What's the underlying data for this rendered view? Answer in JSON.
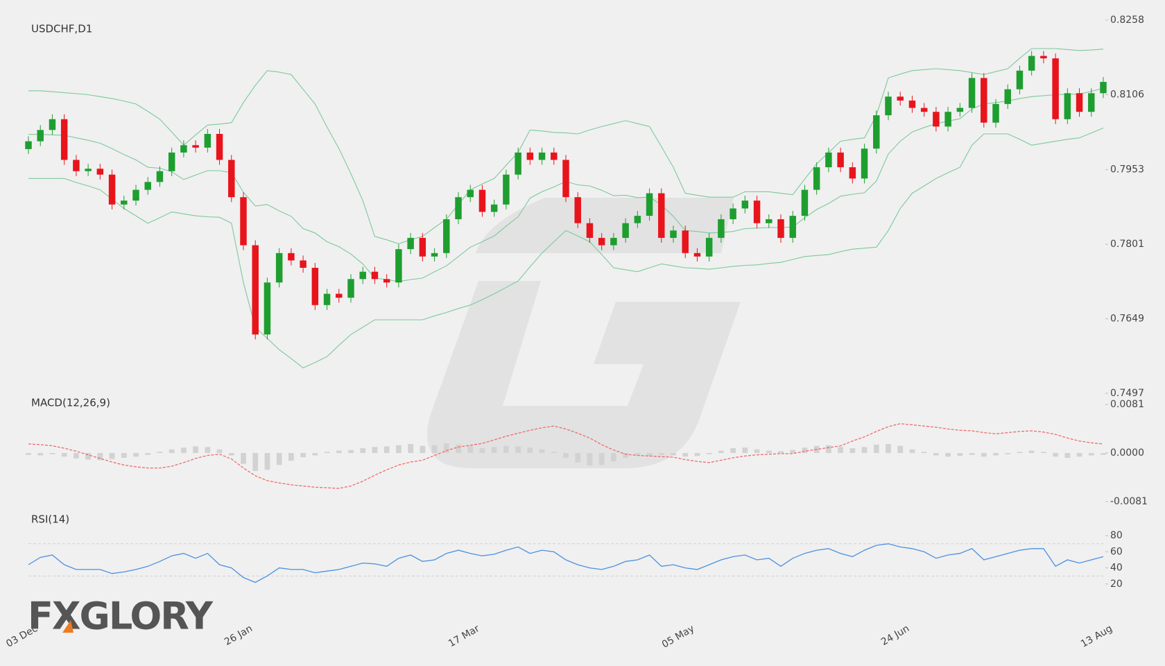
{
  "chart_data": [
    {
      "type": "candlestick",
      "title": "USDCHF,D1",
      "categories": [
        "03 Dec",
        null,
        null,
        null,
        null,
        null,
        null,
        null,
        null,
        null,
        null,
        null,
        null,
        null,
        null,
        null,
        null,
        null,
        "26 Jan",
        null,
        null,
        null,
        null,
        null,
        null,
        null,
        null,
        null,
        null,
        null,
        null,
        null,
        null,
        null,
        null,
        null,
        null,
        "17 Mar",
        null,
        null,
        null,
        null,
        null,
        null,
        null,
        null,
        null,
        null,
        null,
        null,
        null,
        null,
        null,
        null,
        null,
        "05 May",
        null,
        null,
        null,
        null,
        null,
        null,
        null,
        null,
        null,
        null,
        null,
        null,
        null,
        null,
        null,
        null,
        null,
        "24 Jun",
        null,
        null,
        null,
        null,
        null,
        null,
        null,
        null,
        null,
        null,
        null,
        null,
        null,
        null,
        null,
        null,
        "13 Aug"
      ],
      "open": [
        0.7995,
        0.8011,
        0.8034,
        0.8056,
        0.7973,
        0.795,
        0.7955,
        0.7943,
        0.7882,
        0.789,
        0.7912,
        0.7928,
        0.795,
        0.7988,
        0.8003,
        0.7998,
        0.8026,
        0.7973,
        0.7897,
        0.7799,
        0.7617,
        0.7723,
        0.7783,
        0.7768,
        0.7753,
        0.7677,
        0.77,
        0.7692,
        0.773,
        0.7745,
        0.773,
        0.7723,
        0.7791,
        0.7814,
        0.7776,
        0.7783,
        0.7852,
        0.7897,
        0.7912,
        0.7867,
        0.7882,
        0.7943,
        0.7988,
        0.7973,
        0.7988,
        0.7973,
        0.7897,
        0.7844,
        0.7814,
        0.7799,
        0.7814,
        0.7844,
        0.7859,
        0.7905,
        0.7814,
        0.7829,
        0.7783,
        0.7776,
        0.7814,
        0.7852,
        0.7874,
        0.789,
        0.7844,
        0.7852,
        0.7814,
        0.7859,
        0.7912,
        0.7958,
        0.7988,
        0.7958,
        0.7935,
        0.7996,
        0.8064,
        0.8102,
        0.8094,
        0.8079,
        0.8071,
        0.8041,
        0.8071,
        0.8079,
        0.814,
        0.8049,
        0.8087,
        0.8117,
        0.8155,
        0.8185,
        0.818,
        0.8056,
        0.8109,
        0.8071,
        0.8109
      ],
      "high": [
        0.8021,
        0.8044,
        0.8066,
        0.8066,
        0.7983,
        0.7965,
        0.7965,
        0.7953,
        0.79,
        0.7922,
        0.7938,
        0.796,
        0.7998,
        0.8013,
        0.8013,
        0.8036,
        0.8036,
        0.7983,
        0.7907,
        0.7809,
        0.7733,
        0.7793,
        0.7793,
        0.7778,
        0.7763,
        0.771,
        0.771,
        0.774,
        0.7755,
        0.7755,
        0.774,
        0.7801,
        0.7824,
        0.7824,
        0.7793,
        0.7862,
        0.7907,
        0.7922,
        0.7922,
        0.7892,
        0.7953,
        0.7998,
        0.7998,
        0.7998,
        0.7998,
        0.7983,
        0.7907,
        0.7854,
        0.7824,
        0.7824,
        0.7854,
        0.7869,
        0.7915,
        0.7915,
        0.7839,
        0.7839,
        0.7793,
        0.7824,
        0.7862,
        0.7884,
        0.79,
        0.79,
        0.7862,
        0.7862,
        0.7869,
        0.7922,
        0.7968,
        0.7998,
        0.7998,
        0.7968,
        0.8006,
        0.8074,
        0.8112,
        0.8112,
        0.8104,
        0.8089,
        0.8081,
        0.8081,
        0.8089,
        0.815,
        0.815,
        0.8097,
        0.8127,
        0.8165,
        0.8195,
        0.8195,
        0.819,
        0.8119,
        0.8119,
        0.8119,
        0.8142
      ],
      "low": [
        0.7985,
        0.8001,
        0.8024,
        0.7963,
        0.794,
        0.794,
        0.7933,
        0.7872,
        0.7872,
        0.788,
        0.7902,
        0.7918,
        0.794,
        0.7978,
        0.7988,
        0.7988,
        0.7963,
        0.7887,
        0.7789,
        0.7607,
        0.7607,
        0.7713,
        0.7758,
        0.7743,
        0.7667,
        0.7667,
        0.7682,
        0.7682,
        0.772,
        0.772,
        0.7713,
        0.7713,
        0.7781,
        0.7766,
        0.7766,
        0.7773,
        0.7842,
        0.7887,
        0.7857,
        0.7857,
        0.7872,
        0.7933,
        0.7963,
        0.7963,
        0.7963,
        0.7887,
        0.7834,
        0.7804,
        0.7789,
        0.7789,
        0.7804,
        0.7834,
        0.7849,
        0.7804,
        0.7804,
        0.7773,
        0.7766,
        0.7766,
        0.7804,
        0.7842,
        0.7864,
        0.7834,
        0.7834,
        0.7804,
        0.7804,
        0.7849,
        0.7902,
        0.7948,
        0.7948,
        0.7925,
        0.7925,
        0.7986,
        0.8054,
        0.8084,
        0.8069,
        0.8061,
        0.8031,
        0.8031,
        0.8061,
        0.8069,
        0.8039,
        0.8039,
        0.8077,
        0.8107,
        0.8145,
        0.817,
        0.8046,
        0.8046,
        0.8061,
        0.8061,
        0.8099
      ],
      "close": [
        0.8011,
        0.8034,
        0.8056,
        0.7973,
        0.795,
        0.7955,
        0.7943,
        0.7882,
        0.789,
        0.7912,
        0.7928,
        0.795,
        0.7988,
        0.8003,
        0.7998,
        0.8026,
        0.7973,
        0.7897,
        0.7799,
        0.7617,
        0.7723,
        0.7783,
        0.7768,
        0.7753,
        0.7677,
        0.77,
        0.7692,
        0.773,
        0.7745,
        0.773,
        0.7723,
        0.7791,
        0.7814,
        0.7776,
        0.7783,
        0.7852,
        0.7897,
        0.7912,
        0.7867,
        0.7882,
        0.7943,
        0.7988,
        0.7973,
        0.7988,
        0.7973,
        0.7897,
        0.7844,
        0.7814,
        0.7799,
        0.7814,
        0.7844,
        0.7859,
        0.7905,
        0.7814,
        0.7829,
        0.7783,
        0.7776,
        0.7814,
        0.7852,
        0.7874,
        0.789,
        0.7844,
        0.7852,
        0.7814,
        0.7859,
        0.7912,
        0.7958,
        0.7988,
        0.7958,
        0.7935,
        0.7996,
        0.8064,
        0.8102,
        0.8094,
        0.8079,
        0.8071,
        0.8041,
        0.8071,
        0.8079,
        0.814,
        0.8049,
        0.8087,
        0.8117,
        0.8155,
        0.8185,
        0.818,
        0.8056,
        0.8109,
        0.8071,
        0.8109,
        0.8132
      ],
      "up_color": "#1e9e2f",
      "down_color": "#e8141c",
      "bands": {
        "color": "#7cc99a",
        "upper": [
          0.8114,
          0.8114,
          0.8112,
          0.811,
          0.8108,
          0.8106,
          0.8102,
          0.8098,
          0.8093,
          0.8087,
          0.8072,
          0.8056,
          0.803,
          0.8003,
          0.8024,
          0.8044,
          0.8046,
          0.8049,
          0.809,
          0.8125,
          0.8155,
          0.8152,
          0.8147,
          0.8117,
          0.8087,
          0.804,
          0.7996,
          0.7945,
          0.789,
          0.7817,
          0.781,
          0.7802,
          0.781,
          0.7817,
          0.7835,
          0.7852,
          0.7882,
          0.7912,
          0.7924,
          0.7935,
          0.7962,
          0.7988,
          0.8034,
          0.8032,
          0.8029,
          0.8028,
          0.8026,
          0.8034,
          0.8041,
          0.8047,
          0.8053,
          0.8047,
          0.8041,
          0.8,
          0.7958,
          0.7905,
          0.7901,
          0.7897,
          0.7897,
          0.7897,
          0.7908,
          0.7908,
          0.7908,
          0.7905,
          0.7902,
          0.7934,
          0.7965,
          0.7988,
          0.8011,
          0.8015,
          0.8018,
          0.8064,
          0.814,
          0.8148,
          0.8155,
          0.8157,
          0.8159,
          0.8157,
          0.8155,
          0.8151,
          0.8147,
          0.8153,
          0.8159,
          0.818,
          0.82,
          0.82,
          0.82,
          0.8198,
          0.8196,
          0.8197,
          0.8199
        ],
        "middle": [
          0.8025,
          0.8025,
          0.8024,
          0.8023,
          0.8018,
          0.8013,
          0.8007,
          0.7996,
          0.7984,
          0.7973,
          0.7958,
          0.7956,
          0.7949,
          0.7933,
          0.7942,
          0.7951,
          0.7951,
          0.7947,
          0.7907,
          0.7879,
          0.7882,
          0.7869,
          0.7858,
          0.7833,
          0.7824,
          0.7806,
          0.7796,
          0.7781,
          0.7761,
          0.7732,
          0.7729,
          0.7725,
          0.7729,
          0.7732,
          0.7745,
          0.7757,
          0.7776,
          0.7795,
          0.7806,
          0.7818,
          0.7838,
          0.7857,
          0.7895,
          0.7908,
          0.7918,
          0.7929,
          0.7922,
          0.792,
          0.7911,
          0.79,
          0.7901,
          0.7896,
          0.7897,
          0.7881,
          0.7858,
          0.7829,
          0.7827,
          0.7824,
          0.7825,
          0.7827,
          0.7833,
          0.7834,
          0.7835,
          0.7835,
          0.7836,
          0.7855,
          0.7872,
          0.7884,
          0.7899,
          0.7903,
          0.7906,
          0.793,
          0.7985,
          0.8011,
          0.803,
          0.8039,
          0.8047,
          0.8052,
          0.8057,
          0.8077,
          0.8087,
          0.809,
          0.8093,
          0.8098,
          0.8102,
          0.8104,
          0.8106,
          0.8107,
          0.8107,
          0.8113,
          0.8119
        ],
        "lower": [
          0.7935,
          0.7935,
          0.7935,
          0.7935,
          0.7927,
          0.792,
          0.7912,
          0.7893,
          0.7874,
          0.7859,
          0.7844,
          0.7855,
          0.7867,
          0.7863,
          0.7859,
          0.7857,
          0.7856,
          0.7844,
          0.7723,
          0.7632,
          0.7609,
          0.7586,
          0.7568,
          0.7549,
          0.756,
          0.7572,
          0.7595,
          0.7617,
          0.7632,
          0.7647,
          0.7647,
          0.7647,
          0.7647,
          0.7647,
          0.7655,
          0.7662,
          0.767,
          0.7677,
          0.7688,
          0.77,
          0.7713,
          0.7726,
          0.7755,
          0.7783,
          0.7806,
          0.7829,
          0.7818,
          0.7806,
          0.778,
          0.7753,
          0.7749,
          0.7745,
          0.7753,
          0.7761,
          0.7757,
          0.7753,
          0.7752,
          0.775,
          0.7753,
          0.7756,
          0.7758,
          0.7759,
          0.7762,
          0.7764,
          0.777,
          0.7776,
          0.7778,
          0.778,
          0.7786,
          0.7791,
          0.7793,
          0.7795,
          0.7829,
          0.7874,
          0.7905,
          0.792,
          0.7935,
          0.7947,
          0.7958,
          0.8003,
          0.8026,
          0.8026,
          0.8026,
          0.8015,
          0.8003,
          0.8007,
          0.8011,
          0.8015,
          0.8018,
          0.8028,
          0.8038
        ]
      },
      "ylim": [
        0.7497,
        0.8258
      ],
      "yticks": [
        0.8258,
        0.8106,
        0.7953,
        0.7801,
        0.7649,
        0.7497
      ]
    },
    {
      "type": "macd",
      "title": "MACD(12,26,9)",
      "histogram": {
        "color": "#d2d2d2",
        "values": [
          -0.0003,
          -0.0004,
          -0.0002,
          -0.0006,
          -0.0009,
          -0.0011,
          -0.0012,
          -0.001,
          -0.0008,
          -0.0006,
          -0.0003,
          0.0002,
          0.0006,
          0.0009,
          0.0011,
          0.001,
          0.0006,
          -0.0004,
          -0.0018,
          -0.003,
          -0.0028,
          -0.002,
          -0.0013,
          -0.0007,
          -0.0004,
          0.0002,
          0.0004,
          0.0005,
          0.0008,
          0.001,
          0.0011,
          0.0013,
          0.0015,
          0.0012,
          0.0013,
          0.0016,
          0.0014,
          0.0012,
          0.0008,
          0.001,
          0.0012,
          0.0011,
          0.0009,
          0.0006,
          0.0002,
          -0.0008,
          -0.0016,
          -0.0021,
          -0.002,
          -0.0014,
          -0.0008,
          -0.0004,
          -0.0005,
          -0.0003,
          -0.0004,
          -0.0006,
          -0.0005,
          -0.0002,
          0.0004,
          0.0008,
          0.0009,
          0.0006,
          0.0004,
          0.0003,
          0.0005,
          0.0009,
          0.0012,
          0.0013,
          0.001,
          0.0008,
          0.001,
          0.0014,
          0.0015,
          0.0012,
          0.0006,
          0.0002,
          -0.0004,
          -0.0006,
          -0.0005,
          -0.0003,
          -0.0006,
          -0.0004,
          -0.0002,
          0.0002,
          0.0004,
          0.0002,
          -0.0006,
          -0.0008,
          -0.0006,
          -0.0004,
          -0.0003
        ]
      },
      "signal": {
        "color": "#f06a6a",
        "values": [
          0.0015,
          0.0014,
          0.0012,
          0.0008,
          0.0003,
          -0.0003,
          -0.0009,
          -0.0015,
          -0.002,
          -0.0023,
          -0.0025,
          -0.0025,
          -0.0022,
          -0.0016,
          -0.0009,
          -0.0004,
          -0.0002,
          -0.001,
          -0.0025,
          -0.0038,
          -0.0046,
          -0.005,
          -0.0053,
          -0.0055,
          -0.0057,
          -0.0058,
          -0.0059,
          -0.0055,
          -0.0047,
          -0.0037,
          -0.0028,
          -0.002,
          -0.0015,
          -0.0012,
          -0.0004,
          0.0004,
          0.001,
          0.0013,
          0.0016,
          0.0022,
          0.0028,
          0.0033,
          0.0038,
          0.0042,
          0.0045,
          0.004,
          0.0033,
          0.0025,
          0.0014,
          0.0005,
          -0.0002,
          -0.0004,
          -0.0005,
          -0.0006,
          -0.0007,
          -0.0011,
          -0.0014,
          -0.0016,
          -0.0012,
          -0.0008,
          -0.0005,
          -0.0003,
          -0.0002,
          -0.0001,
          -0.0001,
          0.0003,
          0.0006,
          0.0009,
          0.0012,
          0.002,
          0.0027,
          0.0036,
          0.0044,
          0.0049,
          0.0047,
          0.0045,
          0.0043,
          0.004,
          0.0038,
          0.0037,
          0.0034,
          0.0032,
          0.0034,
          0.0036,
          0.0037,
          0.0035,
          0.0031,
          0.0025,
          0.002,
          0.0017,
          0.0015
        ]
      },
      "ylim": [
        -0.0081,
        0.0081
      ],
      "yticks": [
        0.0081,
        {
          "value": 0,
          "label": "0.0000"
        },
        -0.0081
      ]
    },
    {
      "type": "rsi",
      "title": "RSI(14)",
      "color": "#4a90e2",
      "values": [
        44,
        53,
        56,
        44,
        38,
        38,
        38,
        33,
        35,
        38,
        42,
        48,
        55,
        58,
        52,
        58,
        44,
        40,
        28,
        22,
        30,
        40,
        38,
        38,
        34,
        36,
        38,
        42,
        46,
        45,
        42,
        52,
        56,
        48,
        50,
        58,
        62,
        58,
        55,
        57,
        62,
        66,
        58,
        62,
        60,
        50,
        44,
        40,
        38,
        42,
        48,
        50,
        56,
        42,
        44,
        40,
        38,
        44,
        50,
        54,
        56,
        50,
        52,
        42,
        52,
        58,
        62,
        64,
        58,
        54,
        62,
        68,
        70,
        66,
        64,
        60,
        52,
        56,
        58,
        64,
        50,
        54,
        58,
        62,
        64,
        64,
        42,
        50,
        46,
        50,
        54
      ],
      "levels": [
        70,
        30
      ],
      "ylim": [
        0,
        100
      ],
      "yticks": [
        80,
        60,
        40,
        20
      ]
    }
  ],
  "logo": "FXGLORY"
}
